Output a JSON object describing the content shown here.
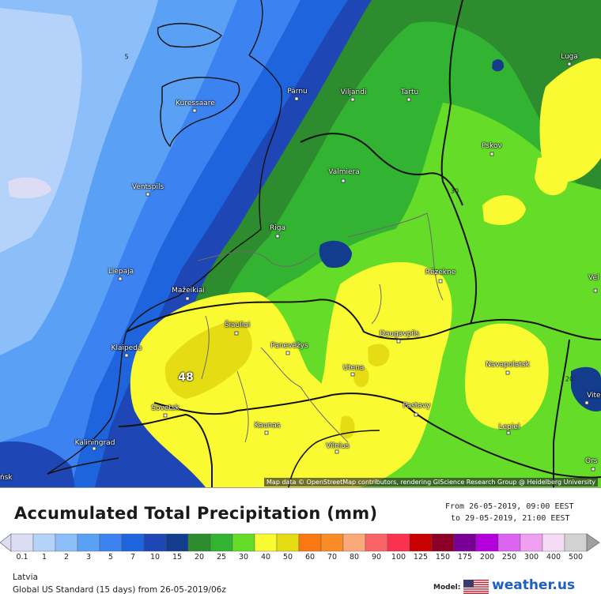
{
  "map": {
    "region": "Latvia",
    "attribution": "Map data © OpenStreetMap contributors, rendering GIScience Research Group @ Heidelberg University",
    "peak_value": "48",
    "cities": [
      {
        "name": "Pärnu"
      },
      {
        "name": "Viljandi"
      },
      {
        "name": "Tartu"
      },
      {
        "name": "Luga"
      },
      {
        "name": "Kuressaare"
      },
      {
        "name": "Pskov"
      },
      {
        "name": "Valmiera"
      },
      {
        "name": "Ventspils"
      },
      {
        "name": "Riga"
      },
      {
        "name": "Liepaja"
      },
      {
        "name": "Rēzekne"
      },
      {
        "name": "Mažeikiai"
      },
      {
        "name": "Šiauliai"
      },
      {
        "name": "Klaipeda"
      },
      {
        "name": "Panevėžys"
      },
      {
        "name": "Daugavpils"
      },
      {
        "name": "Navapolatsk"
      },
      {
        "name": "Utena"
      },
      {
        "name": "Sovetsk"
      },
      {
        "name": "Pastavy"
      },
      {
        "name": "Kaunas"
      },
      {
        "name": "Lepiel"
      },
      {
        "name": "Kaliningrad"
      },
      {
        "name": "Vilnius"
      },
      {
        "name": "Vitebsk"
      },
      {
        "name": "Orsha"
      },
      {
        "name": "Velikiye"
      },
      {
        "name": "Pinsk"
      }
    ],
    "iso_labels": [
      "5",
      "30",
      "20"
    ]
  },
  "legend": {
    "title": "Accumulated Total Precipitation (mm)",
    "period_from": "From 26-05-2019, 09:00 EEST",
    "period_to": "to 29-05-2019, 21:00 EEST",
    "scale": [
      {
        "value": "0.1",
        "color": "#dcdcf5"
      },
      {
        "value": "1",
        "color": "#b4d2fa"
      },
      {
        "value": "2",
        "color": "#8cbefa"
      },
      {
        "value": "3",
        "color": "#5aa0f5"
      },
      {
        "value": "5",
        "color": "#3c82f0"
      },
      {
        "value": "7",
        "color": "#1e64dc"
      },
      {
        "value": "10",
        "color": "#1e46b4"
      },
      {
        "value": "15",
        "color": "#143c8c"
      },
      {
        "value": "20",
        "color": "#2d8c2d"
      },
      {
        "value": "25",
        "color": "#32b432"
      },
      {
        "value": "30",
        "color": "#64dc28"
      },
      {
        "value": "40",
        "color": "#fafa32"
      },
      {
        "value": "50",
        "color": "#e6dc14"
      },
      {
        "value": "60",
        "color": "#fa7814"
      },
      {
        "value": "70",
        "color": "#fa8c28"
      },
      {
        "value": "80",
        "color": "#faaa78"
      },
      {
        "value": "90",
        "color": "#fa6464"
      },
      {
        "value": "100",
        "color": "#fa3250"
      },
      {
        "value": "125",
        "color": "#c80000"
      },
      {
        "value": "150",
        "color": "#8c0028"
      },
      {
        "value": "175",
        "color": "#780096"
      },
      {
        "value": "200",
        "color": "#b400dc"
      },
      {
        "value": "250",
        "color": "#dc64f0"
      },
      {
        "value": "300",
        "color": "#f0a0f0"
      },
      {
        "value": "400",
        "color": "#f5dcf5"
      },
      {
        "value": "500",
        "color": "#d2d2d2"
      }
    ]
  },
  "footer": {
    "region": "Latvia",
    "model_run": "Global US Standard (15 days) from 26-05-2019/06z",
    "model_label": "Model:",
    "brand": "weather.us"
  }
}
